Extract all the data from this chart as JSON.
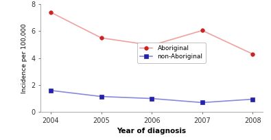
{
  "years": [
    2004,
    2005,
    2006,
    2007,
    2008
  ],
  "aboriginal": [
    7.4,
    5.5,
    4.95,
    6.05,
    4.3
  ],
  "non_aboriginal": [
    1.6,
    1.15,
    1.0,
    0.7,
    0.95
  ],
  "aboriginal_line_color": "#f0a0a0",
  "aboriginal_marker_color": "#cc2222",
  "non_aboriginal_line_color": "#8888dd",
  "non_aboriginal_marker_color": "#2222aa",
  "xlabel": "Year of diagnosis",
  "ylabel": "Incidence per 100,000",
  "ylim": [
    0,
    8
  ],
  "yticks": [
    0,
    2,
    4,
    6,
    8
  ],
  "legend_aboriginal": "Aboriginal",
  "legend_non_aboriginal": "non-Aboriginal",
  "background_color": "#ffffff"
}
